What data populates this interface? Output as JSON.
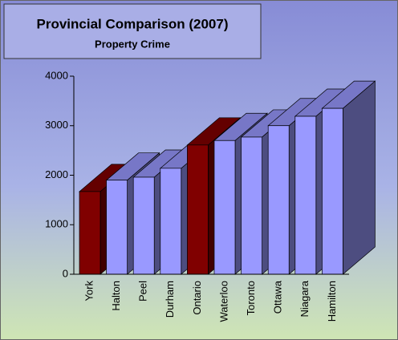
{
  "chart_data": {
    "type": "bar3d",
    "title": "Provincial Comparison (2007)",
    "subtitle": "Property Crime",
    "categories": [
      "York",
      "Halton",
      "Peel",
      "Durham",
      "Ontario",
      "Waterloo",
      "Toronto",
      "Ottawa",
      "Niagara",
      "Hamilton"
    ],
    "values": [
      1670,
      1900,
      1960,
      2140,
      2610,
      2700,
      2770,
      3000,
      3190,
      3350
    ],
    "colors": [
      "#800000",
      "#9999ff",
      "#9999ff",
      "#9999ff",
      "#800000",
      "#9999ff",
      "#9999ff",
      "#9999ff",
      "#9999ff",
      "#9999ff"
    ],
    "ylim": [
      0,
      4000
    ],
    "yticks": [
      0,
      1000,
      2000,
      3000,
      4000
    ]
  }
}
